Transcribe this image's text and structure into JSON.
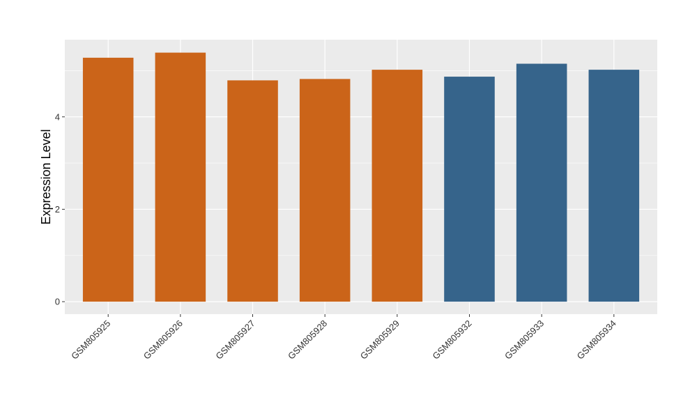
{
  "chart_data": {
    "type": "bar",
    "title": "",
    "xlabel": "",
    "ylabel": "Expression Level",
    "categories": [
      "GSM805925",
      "GSM805926",
      "GSM805927",
      "GSM805928",
      "GSM805929",
      "GSM805932",
      "GSM805933",
      "GSM805934"
    ],
    "values": [
      5.28,
      5.39,
      4.79,
      4.82,
      5.02,
      4.87,
      5.15,
      5.02
    ],
    "colors": [
      "#CB6419",
      "#CB6419",
      "#CB6419",
      "#CB6419",
      "#CB6419",
      "#36648B",
      "#36648B",
      "#36648B"
    ],
    "yticks": [
      0,
      2,
      4
    ],
    "ylim": [
      -0.27,
      5.67
    ],
    "grid": true,
    "panel_background": "#EBEBEB",
    "gridline_color": "#FFFFFF"
  }
}
